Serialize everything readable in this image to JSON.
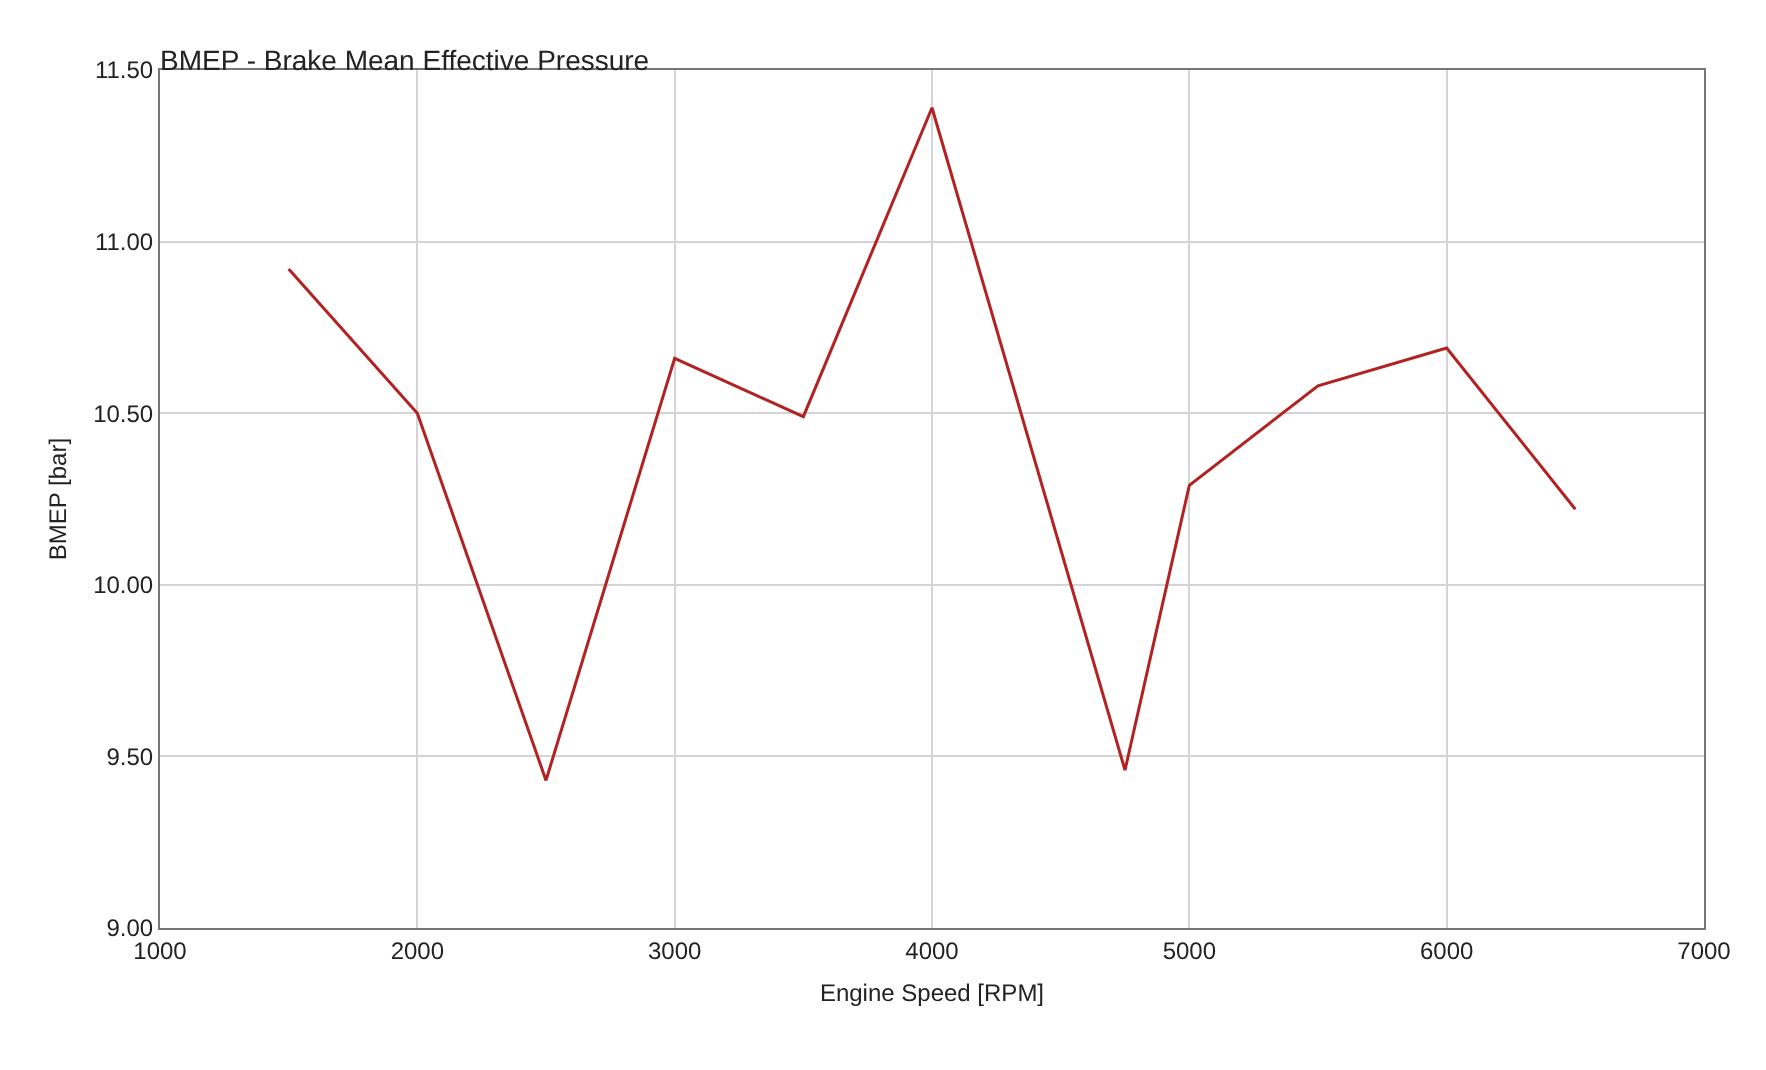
{
  "chart_data": {
    "type": "line",
    "title": "BMEP - Brake Mean Effective Pressure",
    "xlabel": "Engine Speed [RPM]",
    "ylabel": "BMEP [bar]",
    "x": [
      1500,
      2000,
      2500,
      3000,
      3500,
      4000,
      4750,
      5000,
      5500,
      6000,
      6500
    ],
    "series": [
      {
        "color": "#b22222",
        "values": [
          10.92,
          10.5,
          9.43,
          10.66,
          10.49,
          11.39,
          9.46,
          10.29,
          10.58,
          10.69,
          10.22
        ]
      }
    ],
    "xlim": [
      1000,
      7000
    ],
    "xticks": [
      1000,
      2000,
      3000,
      4000,
      5000,
      6000,
      7000
    ],
    "ylim": [
      9,
      11.5
    ],
    "yticks": [
      {
        "value": 9,
        "label": "9.00"
      },
      {
        "value": 9.5,
        "label": "9.50"
      },
      {
        "value": 10,
        "label": "10.00"
      },
      {
        "value": 10.5,
        "label": "10.50"
      },
      {
        "value": 11,
        "label": "11.00"
      },
      {
        "value": 11.5,
        "label": "11.50"
      }
    ],
    "grid": true,
    "marker": "none",
    "line_style": "solid"
  }
}
